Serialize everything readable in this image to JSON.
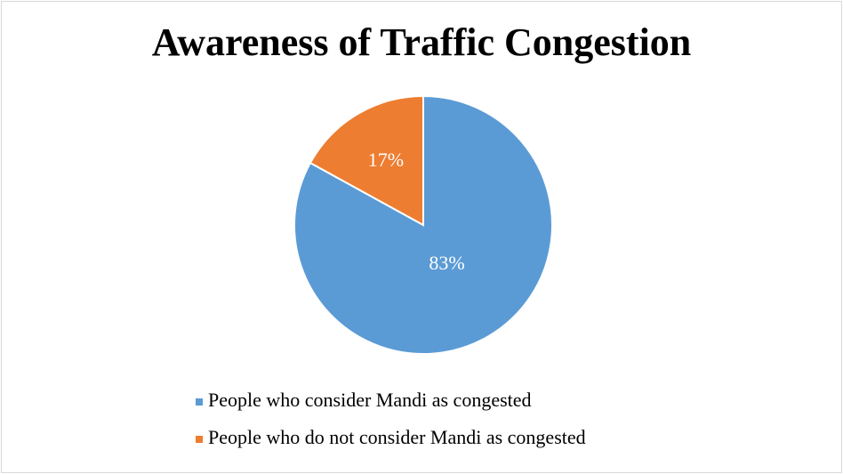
{
  "chart_data": {
    "type": "pie",
    "title": "Awareness of Traffic Congestion",
    "categories": [
      "People who consider Mandi as congested",
      "People who do not consider Mandi as congested"
    ],
    "values": [
      83,
      17
    ],
    "value_labels": [
      "83%",
      "17%"
    ],
    "colors": [
      "#5b9bd5",
      "#ed7d31"
    ],
    "legend": "bottom"
  }
}
